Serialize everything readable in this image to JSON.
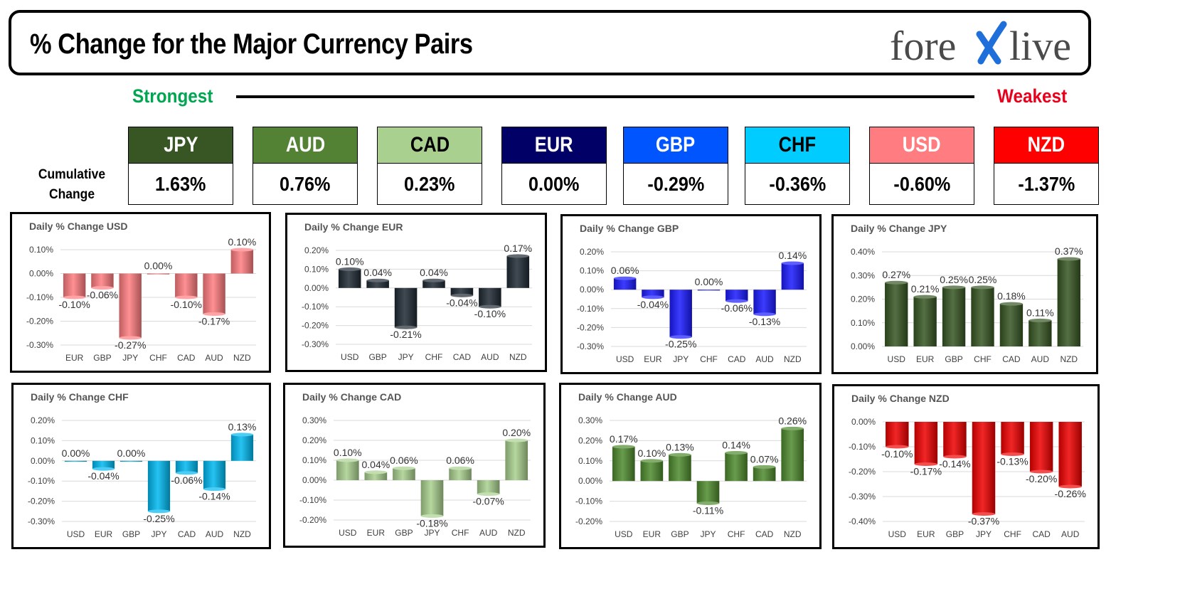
{
  "header": {
    "title": "% Change for the Major Currency Pairs",
    "logo_text": "forexlive"
  },
  "ranking": {
    "strongest_label": "Strongest",
    "weakest_label": "Weakest",
    "cumulative_label_line1": "Cumulative",
    "cumulative_label_line2": "Change",
    "currencies": [
      {
        "code": "JPY",
        "value": "1.63%",
        "color": "#375623",
        "text_color": "#ffffff"
      },
      {
        "code": "AUD",
        "value": "0.76%",
        "color": "#548235",
        "text_color": "#ffffff"
      },
      {
        "code": "CAD",
        "value": "0.23%",
        "color": "#a9d08e",
        "text_color": "#000000"
      },
      {
        "code": "EUR",
        "value": "0.00%",
        "color": "#000066",
        "text_color": "#ffffff"
      },
      {
        "code": "GBP",
        "value": "-0.29%",
        "color": "#0055ff",
        "text_color": "#ffffff"
      },
      {
        "code": "CHF",
        "value": "-0.36%",
        "color": "#00ccff",
        "text_color": "#000000"
      },
      {
        "code": "USD",
        "value": "-0.60%",
        "color": "#ff7c80",
        "text_color": "#ffffff"
      },
      {
        "code": "NZD",
        "value": "-1.37%",
        "color": "#ff0000",
        "text_color": "#ffffff"
      }
    ]
  },
  "chart_data": [
    {
      "type": "bar",
      "title": "Daily % Change USD",
      "categories": [
        "EUR",
        "GBP",
        "JPY",
        "CHF",
        "CAD",
        "AUD",
        "NZD"
      ],
      "values": [
        -0.1,
        -0.06,
        -0.27,
        0.0,
        -0.1,
        -0.17,
        0.1
      ],
      "labels": [
        "-0.10%",
        "-0.06%",
        "-0.27%",
        "0.00%",
        "-0.10%",
        "-0.17%",
        "0.10%"
      ],
      "yticks": [
        "0.10%",
        "0.00%",
        "-0.10%",
        "-0.20%",
        "-0.30%"
      ],
      "ylim": [
        -0.3,
        0.1
      ],
      "color": "#ff7c80"
    },
    {
      "type": "bar",
      "title": "Daily % Change EUR",
      "categories": [
        "USD",
        "GBP",
        "JPY",
        "CHF",
        "CAD",
        "AUD",
        "NZD"
      ],
      "values": [
        0.1,
        0.04,
        -0.21,
        0.04,
        -0.04,
        -0.1,
        0.17
      ],
      "labels": [
        "0.10%",
        "0.04%",
        "-0.21%",
        "0.04%",
        "-0.04%",
        "-0.10%",
        "0.17%"
      ],
      "yticks": [
        "0.20%",
        "0.10%",
        "0.00%",
        "-0.10%",
        "-0.20%",
        "-0.30%"
      ],
      "ylim": [
        -0.3,
        0.2
      ],
      "color": "#1f2933"
    },
    {
      "type": "bar",
      "title": "Daily % Change GBP",
      "categories": [
        "USD",
        "EUR",
        "JPY",
        "CHF",
        "CAD",
        "AUD",
        "NZD"
      ],
      "values": [
        0.06,
        -0.04,
        -0.25,
        0.0,
        -0.06,
        -0.13,
        0.14
      ],
      "labels": [
        "0.06%",
        "-0.04%",
        "-0.25%",
        "0.00%",
        "-0.06%",
        "-0.13%",
        "0.14%"
      ],
      "yticks": [
        "0.20%",
        "0.10%",
        "0.00%",
        "-0.10%",
        "-0.20%",
        "-0.30%"
      ],
      "ylim": [
        -0.3,
        0.2
      ],
      "color": "#1a1aff"
    },
    {
      "type": "bar",
      "title": "Daily % Change JPY",
      "categories": [
        "USD",
        "EUR",
        "GBP",
        "CHF",
        "CAD",
        "AUD",
        "NZD"
      ],
      "values": [
        0.27,
        0.21,
        0.25,
        0.25,
        0.18,
        0.11,
        0.37
      ],
      "labels": [
        "0.27%",
        "0.21%",
        "0.25%",
        "0.25%",
        "0.18%",
        "0.11%",
        "0.37%"
      ],
      "yticks": [
        "0.40%",
        "0.30%",
        "0.20%",
        "0.10%",
        "0.00%"
      ],
      "ylim": [
        0.0,
        0.4
      ],
      "color": "#375623"
    },
    {
      "type": "bar",
      "title": "Daily % Change CHF",
      "categories": [
        "USD",
        "EUR",
        "GBP",
        "JPY",
        "CAD",
        "AUD",
        "NZD"
      ],
      "values": [
        0.0,
        -0.04,
        0.0,
        -0.25,
        -0.06,
        -0.14,
        0.13
      ],
      "labels": [
        "0.00%",
        "-0.04%",
        "0.00%",
        "-0.25%",
        "-0.06%",
        "-0.14%",
        "0.13%"
      ],
      "yticks": [
        "0.20%",
        "0.10%",
        "0.00%",
        "-0.10%",
        "-0.20%",
        "-0.30%"
      ],
      "ylim": [
        -0.3,
        0.2
      ],
      "color": "#00b8f0"
    },
    {
      "type": "bar",
      "title": "Daily % Change CAD",
      "categories": [
        "USD",
        "EUR",
        "GBP",
        "JPY",
        "CHF",
        "AUD",
        "NZD"
      ],
      "values": [
        0.1,
        0.04,
        0.06,
        -0.18,
        0.06,
        -0.07,
        0.2
      ],
      "labels": [
        "0.10%",
        "0.04%",
        "0.06%",
        "-0.18%",
        "0.06%",
        "-0.07%",
        "0.20%"
      ],
      "yticks": [
        "0.30%",
        "0.20%",
        "0.10%",
        "0.00%",
        "-0.10%",
        "-0.20%"
      ],
      "ylim": [
        -0.2,
        0.3
      ],
      "color": "#a9d08e"
    },
    {
      "type": "bar",
      "title": "Daily % Change AUD",
      "categories": [
        "USD",
        "EUR",
        "GBP",
        "JPY",
        "CHF",
        "CAD",
        "NZD"
      ],
      "values": [
        0.17,
        0.1,
        0.13,
        -0.11,
        0.14,
        0.07,
        0.26
      ],
      "labels": [
        "0.17%",
        "0.10%",
        "0.13%",
        "-0.11%",
        "0.14%",
        "0.07%",
        "0.26%"
      ],
      "yticks": [
        "0.30%",
        "0.20%",
        "0.10%",
        "0.00%",
        "-0.10%",
        "-0.20%"
      ],
      "ylim": [
        -0.2,
        0.3
      ],
      "color": "#4e8a2e"
    },
    {
      "type": "bar",
      "title": "Daily % Change NZD",
      "categories": [
        "USD",
        "EUR",
        "GBP",
        "JPY",
        "CHF",
        "CAD",
        "AUD"
      ],
      "values": [
        -0.1,
        -0.17,
        -0.14,
        -0.37,
        -0.13,
        -0.2,
        -0.26
      ],
      "labels": [
        "-0.10%",
        "-0.17%",
        "-0.14%",
        "-0.37%",
        "-0.13%",
        "-0.20%",
        "-0.26%"
      ],
      "yticks": [
        "0.00%",
        "-0.10%",
        "-0.20%",
        "-0.30%",
        "-0.40%"
      ],
      "ylim": [
        -0.4,
        0.0
      ],
      "color": "#ee0000"
    }
  ]
}
